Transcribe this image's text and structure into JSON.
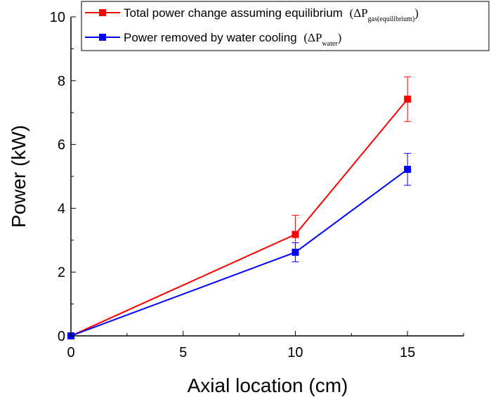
{
  "chart_data": {
    "type": "line",
    "xlabel": "Axial location (cm)",
    "ylabel": "Power (kW)",
    "xlim": [
      0,
      17.5
    ],
    "ylim": [
      0,
      10
    ],
    "xticks": [
      0,
      5,
      10,
      15
    ],
    "yticks": [
      0,
      2,
      4,
      6,
      8,
      10
    ],
    "grid": false,
    "legend_position": "top",
    "series": [
      {
        "name": "Total power change assuming equilibrium",
        "symbol_prefix": "(ΔP",
        "symbol_sub": "gas(equilibrium)",
        "symbol_suffix": ")",
        "color": "#ff0000",
        "x": [
          0,
          10,
          15
        ],
        "y": [
          0,
          3.18,
          7.42
        ],
        "err": [
          0,
          0.6,
          0.7
        ]
      },
      {
        "name": "Power removed by water cooling",
        "symbol_prefix": "(ΔP",
        "symbol_sub": "water",
        "symbol_suffix": ")",
        "color": "#0000ff",
        "x": [
          0,
          10,
          15
        ],
        "y": [
          0,
          2.62,
          5.22
        ],
        "err": [
          0,
          0.3,
          0.5
        ]
      }
    ]
  }
}
